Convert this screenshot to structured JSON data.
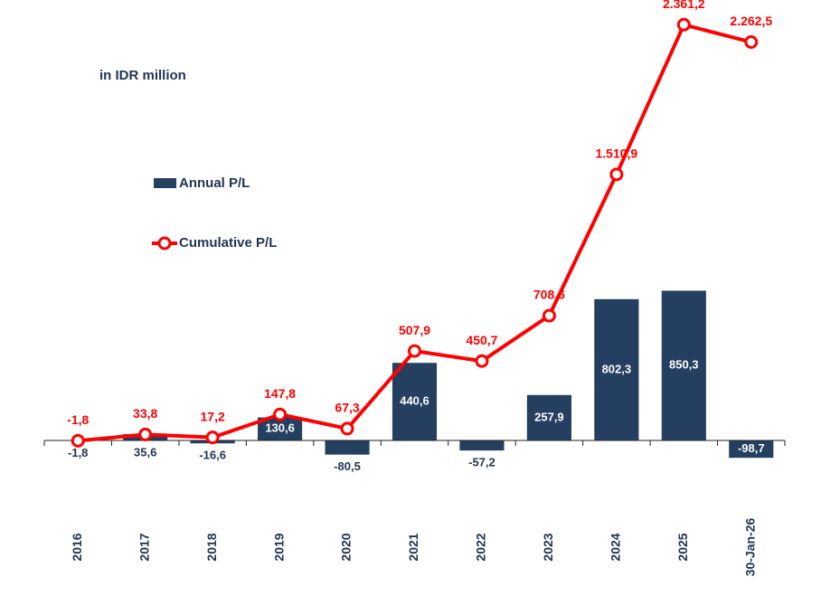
{
  "chart_data": {
    "type": "bar-line",
    "subtitle": "in IDR million",
    "categories": [
      "2016",
      "2017",
      "2018",
      "2019",
      "2020",
      "2021",
      "2022",
      "2023",
      "2024",
      "2025",
      "30-Jan-26"
    ],
    "ylim": [
      -300,
      2450
    ],
    "series": [
      {
        "name": "Annual P/L",
        "type": "bar",
        "color": "#243f60",
        "values": [
          -1.8,
          35.6,
          -16.6,
          130.6,
          -80.5,
          440.6,
          -57.2,
          257.9,
          802.3,
          850.3,
          -98.7
        ],
        "value_labels": [
          "-1,8",
          "35,6",
          "-16,6",
          "130,6",
          "-80,5",
          "440,6",
          "-57,2",
          "257,9",
          "802,3",
          "850,3",
          "-98,7"
        ]
      },
      {
        "name": "Cumulative P/L",
        "type": "line",
        "color": "#ff0000",
        "values": [
          -1.8,
          33.8,
          17.2,
          147.8,
          67.3,
          507.9,
          450.7,
          708.6,
          1510.9,
          2361.2,
          2262.5
        ],
        "value_labels": [
          "-1,8",
          "33,8",
          "17,2",
          "147,8",
          "67,3",
          "507,9",
          "450,7",
          "708,6",
          "1.510,9",
          "2.361,2",
          "2.262,5"
        ]
      }
    ]
  }
}
